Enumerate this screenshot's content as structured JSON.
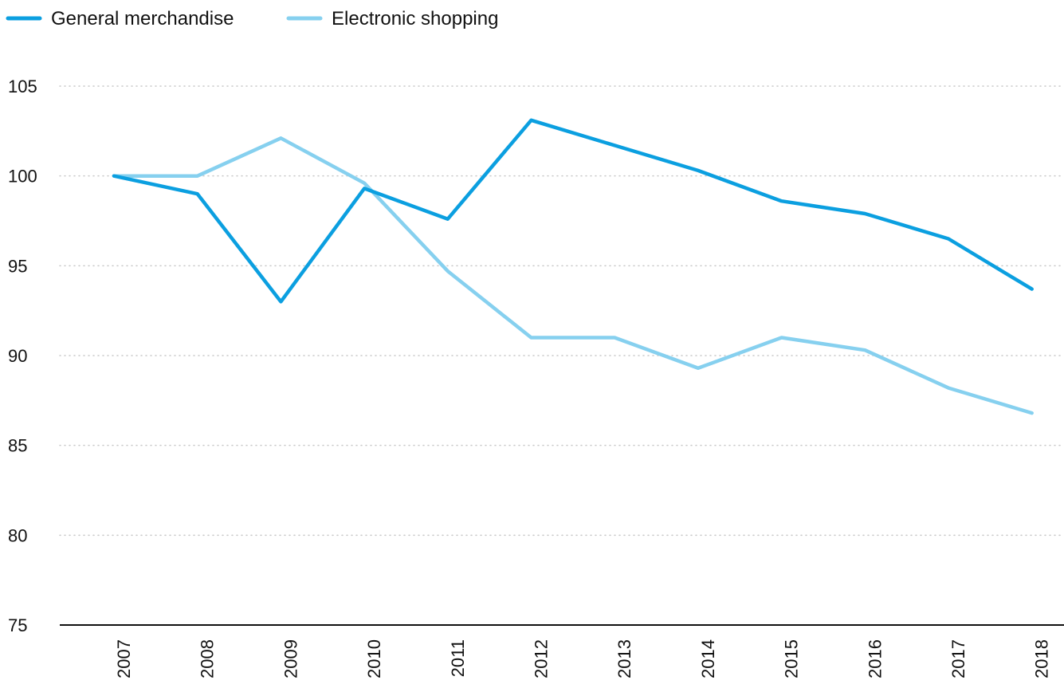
{
  "chart_data": {
    "type": "line",
    "title": "",
    "xlabel": "",
    "ylabel": "",
    "x": [
      "2007",
      "2008",
      "2009",
      "2010",
      "2011",
      "2012",
      "2013",
      "2014",
      "2015",
      "2016",
      "2017",
      "2018"
    ],
    "ylim": [
      75,
      105
    ],
    "yticks": [
      "75",
      "80",
      "85",
      "90",
      "95",
      "100",
      "105"
    ],
    "grid": "horizontal dotted",
    "legend_position": "top-left",
    "series": [
      {
        "name": "General merchandise",
        "color": "#0b9fe0",
        "values": [
          100.0,
          99.0,
          93.0,
          99.3,
          97.6,
          103.1,
          101.7,
          100.3,
          98.6,
          97.9,
          96.5,
          93.7
        ]
      },
      {
        "name": "Electronic shopping",
        "color": "#86d0ef",
        "values": [
          100.0,
          100.0,
          102.1,
          99.6,
          94.7,
          91.0,
          91.0,
          89.3,
          91.0,
          90.3,
          88.2,
          86.8
        ]
      }
    ]
  }
}
